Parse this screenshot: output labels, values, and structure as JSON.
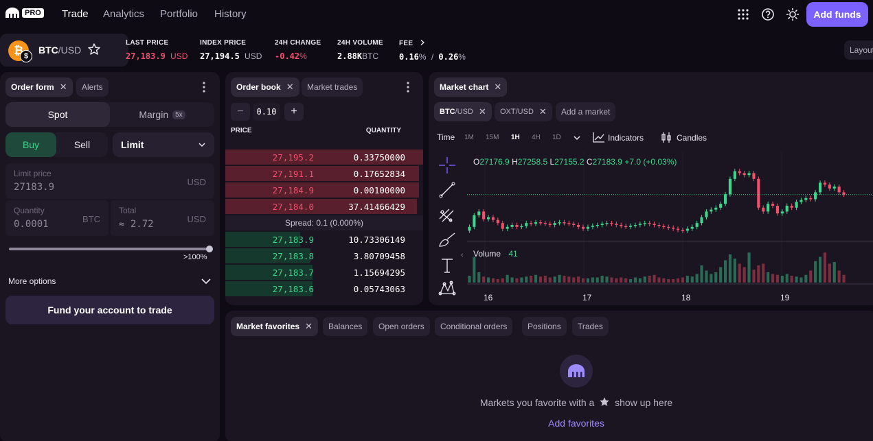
{
  "nav": {
    "logo_text": "PRO",
    "items": [
      {
        "label": "Trade",
        "active": true
      },
      {
        "label": "Analytics",
        "active": false
      },
      {
        "label": "Portfolio",
        "active": false
      },
      {
        "label": "History",
        "active": false
      }
    ],
    "icons": [
      "apps-grid-icon",
      "help-icon",
      "theme-sun-icon"
    ],
    "add_funds_label": "Add funds"
  },
  "ticker": {
    "pair_base": "BTC",
    "pair_quote": "/USD",
    "coin_symbol": "₿",
    "quote_symbol": "$",
    "last_price": {
      "label": "LAST PRICE",
      "value": "27,183.9",
      "unit": "USD"
    },
    "index_price": {
      "label": "INDEX PRICE",
      "value": "27,194.5",
      "unit": "USD"
    },
    "change_24h": {
      "label": "24H CHANGE",
      "value": "-0.42",
      "unit": "%"
    },
    "volume_24h": {
      "label": "24H VOLUME",
      "value": "2.88K",
      "unit": "BTC"
    },
    "fee": {
      "label": "FEE",
      "maker": "0.16",
      "taker": "0.26",
      "unit": "%",
      "sep": "/"
    },
    "layout_label": "Layout"
  },
  "order_form": {
    "tabs": [
      {
        "label": "Order form",
        "active": true
      },
      {
        "label": "Alerts",
        "active": false
      }
    ],
    "mode_spot": "Spot",
    "mode_margin": "Margin",
    "margin_badge": "5x",
    "side_buy": "Buy",
    "side_sell": "Sell",
    "order_type": "Limit",
    "limit_price": {
      "label": "Limit price",
      "value": "27183.9",
      "unit": "USD"
    },
    "quantity": {
      "label": "Quantity",
      "value": "0.0001",
      "unit": "BTC"
    },
    "total": {
      "label": "Total",
      "value": "≈ 2.72",
      "unit": "USD"
    },
    "slider_label": ">100%",
    "slider_level": 1.0,
    "more_options": "More options",
    "fund_button": "Fund your account to trade"
  },
  "order_book": {
    "tabs": [
      {
        "label": "Order book",
        "active": true
      },
      {
        "label": "Market trades",
        "active": false
      }
    ],
    "grouping": "0.10",
    "col_price": "PRICE",
    "col_quantity": "QUANTITY",
    "asks": [
      {
        "price": "27,195.2",
        "qty": "0.33750000",
        "depth": 1.0
      },
      {
        "price": "27,191.1",
        "qty": "0.17652834",
        "depth": 0.98
      },
      {
        "price": "27,184.9",
        "qty": "0.00100000",
        "depth": 0.98
      },
      {
        "price": "27,184.0",
        "qty": "37.41466429",
        "depth": 0.97
      }
    ],
    "spread": "Spread: 0.1 (0.000%)",
    "bids": [
      {
        "price": "27,183.9",
        "qty": "10.73306149",
        "depth": 0.38
      },
      {
        "price": "27,183.8",
        "qty": "3.80709458",
        "depth": 0.43
      },
      {
        "price": "27,183.7",
        "qty": "1.15694295",
        "depth": 0.44
      },
      {
        "price": "27,183.6",
        "qty": "0.05743063",
        "depth": 0.44
      }
    ]
  },
  "market_chart": {
    "tab_label": "Market chart",
    "pairs": [
      {
        "label_base": "BTC",
        "label_quote": "/USD",
        "active": true
      },
      {
        "label_base": "OXT",
        "label_quote": "/USD",
        "active": false
      }
    ],
    "add_market": "Add a market",
    "time_label": "Time",
    "timeframes": [
      {
        "label": "1M",
        "on": false
      },
      {
        "label": "15M",
        "on": false
      },
      {
        "label": "1H",
        "on": true
      },
      {
        "label": "4H",
        "on": false
      },
      {
        "label": "1D",
        "on": false
      }
    ],
    "indicators_label": "Indicators",
    "candles_label": "Candles",
    "ohlc": {
      "o_label": "O",
      "o": "27176.9",
      "h_label": "H",
      "h": "27258.5",
      "l_label": "L",
      "l": "27155.2",
      "c_label": "C",
      "c": "27183.9",
      "change": "+7.0 (+0.03%)"
    },
    "volume_label": "Volume",
    "volume_value": "41",
    "x_ticks": [
      "16",
      "17",
      "18",
      "19"
    ],
    "up_color": "#3dd68c",
    "down_color": "#f0506e",
    "tools": [
      "crosshair-icon",
      "trendline-icon",
      "fib-tool-icon",
      "brush-icon",
      "text-tool-icon",
      "pattern-tool-icon"
    ]
  },
  "chart_data": {
    "type": "candlestick",
    "title": "",
    "ylabel": "",
    "xlabel": "",
    "x_ticks": [
      "16",
      "17",
      "18",
      "19"
    ],
    "ylim": [
      27080,
      27280
    ],
    "candles_close": [
      27100,
      27130,
      27140,
      27120,
      27125,
      27118,
      27110,
      27095,
      27100,
      27105,
      27100,
      27102,
      27110,
      27108,
      27112,
      27110,
      27108,
      27105,
      27110,
      27112,
      27110,
      27108,
      27105,
      27100,
      27095,
      27100,
      27103,
      27105,
      27108,
      27110,
      27108,
      27105,
      27102,
      27100,
      27103,
      27105,
      27108,
      27110,
      27108,
      27105,
      27102,
      27100,
      27098,
      27095,
      27092,
      27090,
      27095,
      27100,
      27110,
      27125,
      27140,
      27145,
      27150,
      27160,
      27185,
      27225,
      27245,
      27240,
      27235,
      27240,
      27225,
      27150,
      27140,
      27160,
      27155,
      27135,
      27140,
      27155,
      27150,
      27165,
      27170,
      27175,
      27172,
      27190,
      27215,
      27210,
      27200,
      27205,
      27190,
      27184
    ],
    "volume": [
      8,
      30,
      12,
      7,
      6,
      5,
      4,
      5,
      9,
      6,
      5,
      6,
      7,
      8,
      9,
      7,
      8,
      6,
      7,
      9,
      8,
      7,
      6,
      7,
      5,
      5,
      6,
      6,
      8,
      7,
      6,
      5,
      6,
      5,
      4,
      6,
      5,
      7,
      8,
      9,
      6,
      5,
      4,
      4,
      5,
      6,
      8,
      7,
      10,
      20,
      14,
      10,
      12,
      18,
      26,
      33,
      28,
      22,
      18,
      35,
      15,
      20,
      22,
      12,
      10,
      9,
      8,
      10,
      8,
      7,
      6,
      9,
      14,
      25,
      30,
      35,
      22,
      24,
      14,
      9
    ]
  },
  "bottom_panel": {
    "tabs": [
      {
        "label": "Market favorites",
        "active": true
      },
      {
        "label": "Balances",
        "active": false
      },
      {
        "label": "Open orders",
        "active": false
      },
      {
        "label": "Conditional orders",
        "active": false
      },
      {
        "label": "Positions",
        "active": false
      },
      {
        "label": "Trades",
        "active": false
      }
    ],
    "empty_text_before": "Markets you favorite with a",
    "empty_text_after": "show up here",
    "add_favorites": "Add favorites"
  }
}
